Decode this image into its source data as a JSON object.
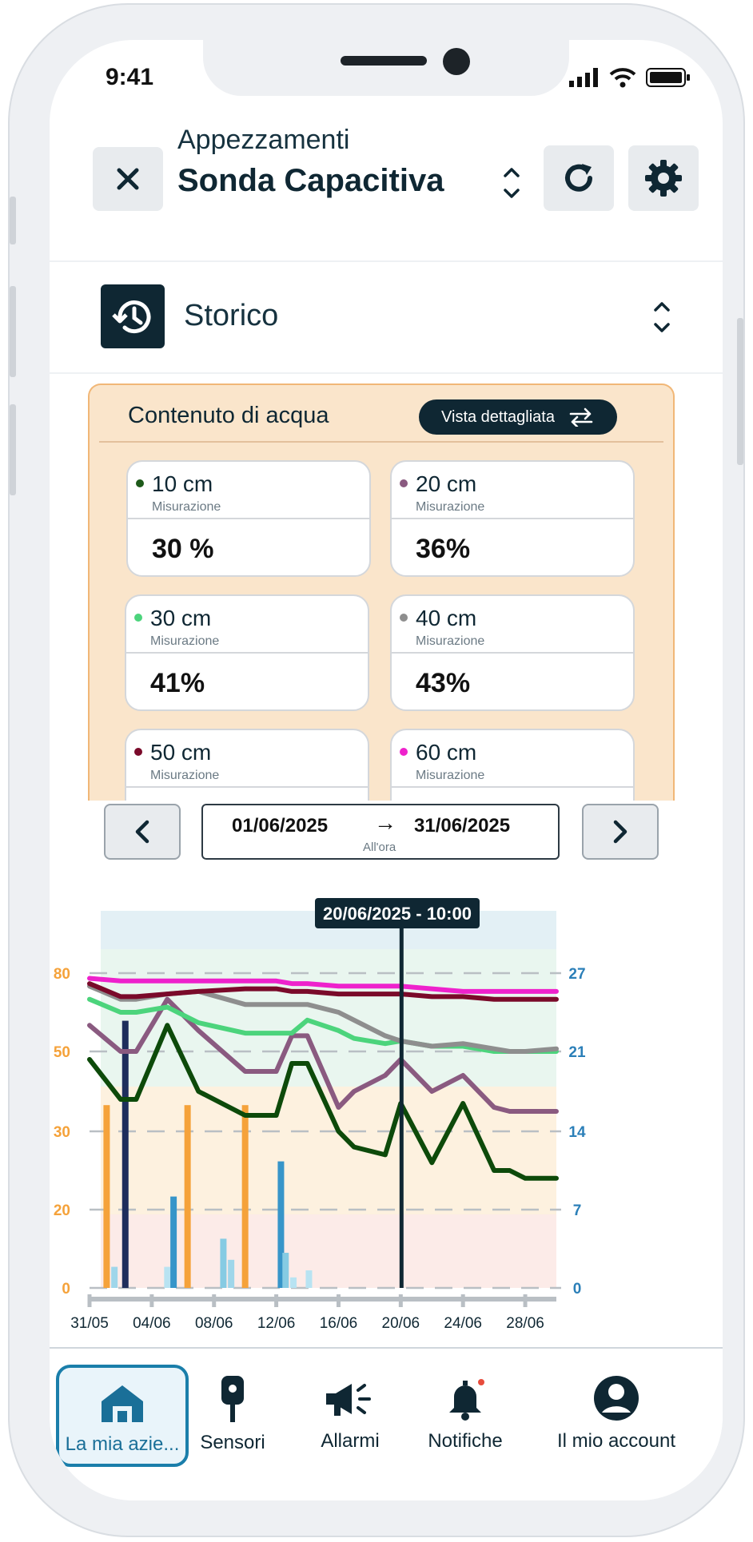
{
  "status_bar": {
    "time": "9:41"
  },
  "header": {
    "subtitle": "Appezzamenti",
    "title": "Sonda Capacitiva",
    "close_icon": "close-icon",
    "refresh_icon": "refresh-icon",
    "settings_icon": "gear-icon"
  },
  "section": {
    "title": "Storico",
    "icon": "history-icon"
  },
  "card": {
    "title": "Contenuto di acqua",
    "detail_button": "Vista dettagliata",
    "tiles": [
      {
        "depth": "10 cm",
        "label": "Misurazione",
        "value": "30 %",
        "color": "#1e5a1a"
      },
      {
        "depth": "20 cm",
        "label": "Misurazione",
        "value": "36%",
        "color": "#8a5a80"
      },
      {
        "depth": "30 cm",
        "label": "Misurazione",
        "value": "41%",
        "color": "#4cd47c"
      },
      {
        "depth": "40 cm",
        "label": "Misurazione",
        "value": "43%",
        "color": "#8e8e8e"
      },
      {
        "depth": "50 cm",
        "label": "Misurazione",
        "value": "",
        "color": "#7a0a2a"
      },
      {
        "depth": "60 cm",
        "label": "Misurazione",
        "value": "",
        "color": "#ee22cc"
      }
    ]
  },
  "date_range": {
    "from": "01/06/2025",
    "arrow": "→",
    "to": "31/06/2025",
    "granularity": "All'ora"
  },
  "chart_data": {
    "type": "line",
    "tooltip": "20/06/2025 - 10:00",
    "x_ticks": [
      "31/05",
      "04/06",
      "08/06",
      "12/06",
      "16/06",
      "20/06",
      "24/06",
      "28/06"
    ],
    "y_left_ticks": [
      "0",
      "20",
      "30",
      "50",
      "80"
    ],
    "y_right_ticks": [
      "0",
      "7",
      "14",
      "21",
      "27"
    ],
    "x_days": [
      0,
      2,
      3,
      5,
      7,
      10,
      12,
      13,
      14,
      16,
      17,
      19,
      20,
      22,
      24,
      26,
      27,
      28,
      30
    ],
    "series": [
      {
        "color": "#ee22cc",
        "values": [
          78,
          77,
          77,
          77,
          77,
          77,
          77,
          76,
          76,
          75,
          75,
          75,
          75,
          74,
          73,
          73,
          73,
          73,
          73
        ]
      },
      {
        "color": "#7a0a2a",
        "values": [
          76,
          71,
          71,
          72,
          73,
          74,
          74,
          73,
          73,
          72,
          72,
          72,
          72,
          71,
          71,
          70,
          70,
          70,
          70
        ]
      },
      {
        "color": "#8e8e8e",
        "values": [
          75,
          70,
          70,
          72,
          73,
          68,
          68,
          68,
          68,
          65,
          62,
          56,
          54,
          52,
          53,
          51,
          50,
          50,
          51
        ]
      },
      {
        "color": "#4cd47c",
        "values": [
          70,
          65,
          65,
          67,
          61,
          57,
          57,
          57,
          62,
          58,
          55,
          53,
          54,
          52,
          52,
          50,
          50,
          50,
          50
        ]
      },
      {
        "color": "#8a5a80",
        "values": [
          60,
          50,
          50,
          70,
          58,
          45,
          45,
          56,
          56,
          36,
          40,
          44,
          48,
          40,
          44,
          36,
          35,
          35,
          35
        ]
      },
      {
        "color": "#0d4a0a",
        "values": [
          48,
          38,
          38,
          60,
          40,
          34,
          34,
          47,
          47,
          30,
          28,
          27,
          37,
          26,
          37,
          25,
          25,
          24,
          24
        ]
      }
    ],
    "bars": [
      {
        "day": 1.1,
        "value": 26,
        "color": "#f5a23a"
      },
      {
        "day": 1.6,
        "value": 3,
        "color": "#9fd6ea"
      },
      {
        "day": 2.3,
        "value": 38,
        "color": "#1e2e5c"
      },
      {
        "day": 5,
        "value": 3,
        "color": "#b8e3f2"
      },
      {
        "day": 5.4,
        "value": 13,
        "color": "#3795c9"
      },
      {
        "day": 6.3,
        "value": 26,
        "color": "#f5a23a"
      },
      {
        "day": 8.6,
        "value": 7,
        "color": "#86cbe3"
      },
      {
        "day": 9.1,
        "value": 4,
        "color": "#9fd6ea"
      },
      {
        "day": 10,
        "value": 26,
        "color": "#f5a23a"
      },
      {
        "day": 12.3,
        "value": 18,
        "color": "#3795c9"
      },
      {
        "day": 12.6,
        "value": 5,
        "color": "#86cbe3"
      },
      {
        "day": 13.1,
        "value": 1.5,
        "color": "#b8e3f2"
      },
      {
        "day": 14.1,
        "value": 2.5,
        "color": "#b8e3f2"
      }
    ],
    "bands": [
      {
        "from": 73,
        "to": 84,
        "color": "#e3f0f5"
      },
      {
        "from": 45,
        "to": 73,
        "color": "#e9f6ef"
      },
      {
        "from": 20,
        "to": 45,
        "color": "#fdf1df"
      },
      {
        "from": 0,
        "to": 20,
        "color": "#fcebe8"
      }
    ]
  },
  "tabs": [
    {
      "label": "La mia azie...",
      "icon": "home-icon"
    },
    {
      "label": "Sensori",
      "icon": "sensor-icon"
    },
    {
      "label": "Allarmi",
      "icon": "megaphone-icon"
    },
    {
      "label": "Notifiche",
      "icon": "bell-icon"
    },
    {
      "label": "Il mio account",
      "icon": "account-icon"
    }
  ]
}
